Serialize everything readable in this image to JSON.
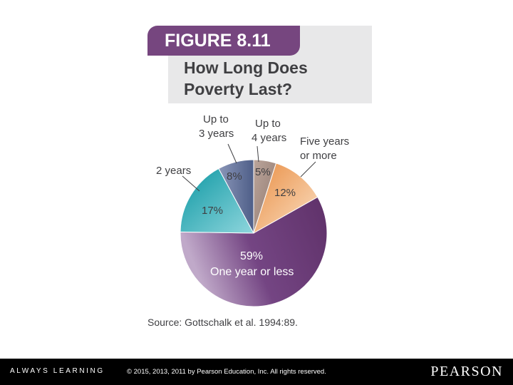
{
  "figure": {
    "tag": "FIGURE 8.11",
    "title_line1": "How Long Does",
    "title_line2": "Poverty Last?",
    "source": "Source: Gottschalk et al. 1994:89."
  },
  "chart_data": {
    "type": "pie",
    "title": "How Long Does Poverty Last?",
    "slices": [
      {
        "label": "Up to 4 years",
        "value": 5,
        "value_label": "5%",
        "color": "#a48a80"
      },
      {
        "label": "Five years or more",
        "value": 12,
        "value_label": "12%",
        "color": "#f0a868"
      },
      {
        "label": "One year or less",
        "value": 59,
        "value_label": "59%",
        "color": "#6e3f79"
      },
      {
        "label": "2 years",
        "value": 17,
        "value_label": "17%",
        "color": "#18a3ad"
      },
      {
        "label": "Up to 3 years",
        "value": 8,
        "value_label": "8%",
        "color": "#6b7aa1"
      }
    ],
    "callouts": {
      "up_to_3_l1": "Up to",
      "up_to_3_l2": "3 years",
      "up_to_4_l1": "Up to",
      "up_to_4_l2": "4 years",
      "five_l1": "Five years",
      "five_l2": "or more",
      "two": "2 years",
      "one_year": "One year or less"
    }
  },
  "footer": {
    "tagline": "ALWAYS LEARNING",
    "copyright": "© 2015, 2013, 2011 by Pearson Education, Inc. All rights reserved.",
    "logo": "PEARSON"
  }
}
